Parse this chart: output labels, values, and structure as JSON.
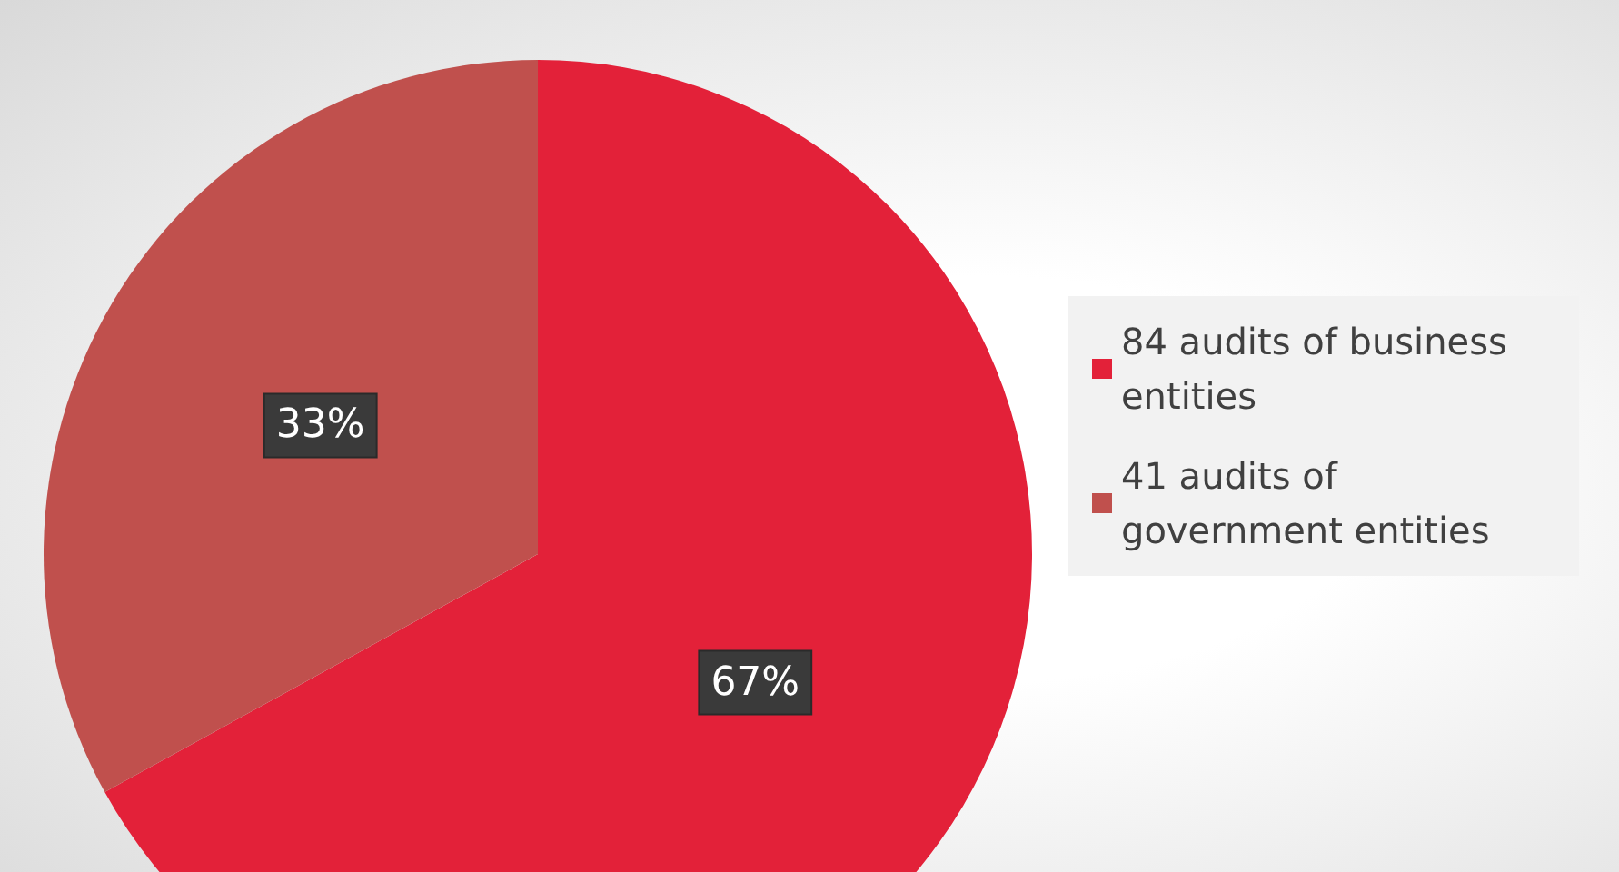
{
  "chart_data": {
    "type": "pie",
    "categories": [
      "84 audits of business entities",
      "41 audits of government entities"
    ],
    "values": [
      67,
      33
    ],
    "colors": [
      "#e32139",
      "#c0504d"
    ],
    "value_labels": [
      "67%",
      "33%"
    ],
    "legend": "right"
  }
}
